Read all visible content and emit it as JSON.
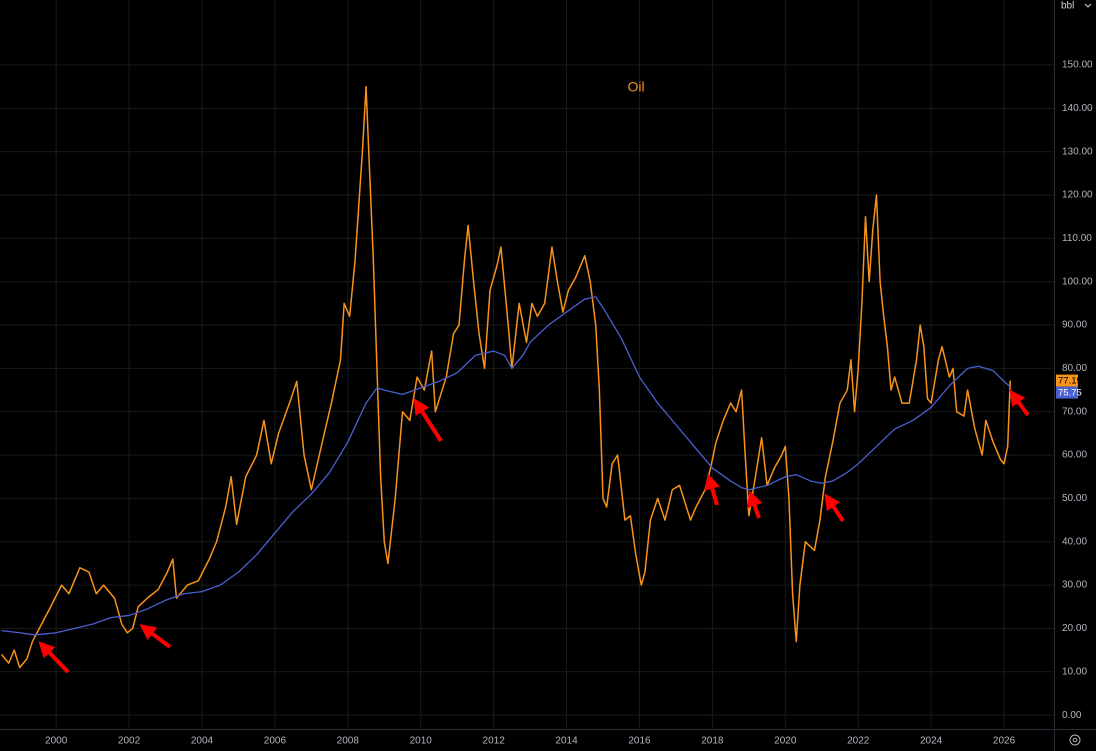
{
  "chart_data": {
    "type": "line",
    "title": "Oil",
    "unit": "bbl",
    "grid": true,
    "xlim": [
      1998.46,
      2027.37
    ],
    "xticks": [
      2000,
      2002,
      2004,
      2006,
      2008,
      2010,
      2012,
      2014,
      2016,
      2018,
      2020,
      2022,
      2024,
      2026
    ],
    "ylim": [
      -3.2,
      165
    ],
    "yticks": [
      {
        "value": 0,
        "label": "0.00"
      },
      {
        "value": 10,
        "label": "10.00"
      },
      {
        "value": 20,
        "label": "20.00"
      },
      {
        "value": 30,
        "label": "30.00"
      },
      {
        "value": 40,
        "label": "40.00"
      },
      {
        "value": 50,
        "label": "50.00"
      },
      {
        "value": 60,
        "label": "60.00"
      },
      {
        "value": 70,
        "label": "70.00"
      },
      {
        "value": 80,
        "label": "80.00"
      },
      {
        "value": 90,
        "label": "90.00"
      },
      {
        "value": 100,
        "label": "100.00"
      },
      {
        "value": 110,
        "label": "110.00"
      },
      {
        "value": 120,
        "label": "120.00"
      },
      {
        "value": 130,
        "label": "130.00"
      },
      {
        "value": 140,
        "label": "140.00"
      },
      {
        "value": 150,
        "label": "150.00"
      }
    ],
    "series": [
      {
        "color": "#f7931a",
        "x": [
          1998.5,
          1998.7,
          1998.85,
          1999.0,
          1999.2,
          1999.35,
          1999.6,
          1999.85,
          2000.15,
          2000.35,
          2000.65,
          2000.9,
          2001.1,
          2001.3,
          2001.6,
          2001.8,
          2001.95,
          2002.1,
          2002.25,
          2002.5,
          2002.8,
          2003.05,
          2003.2,
          2003.3,
          2003.6,
          2003.9,
          2004.2,
          2004.4,
          2004.65,
          2004.8,
          2004.95,
          2005.2,
          2005.5,
          2005.7,
          2005.9,
          2006.1,
          2006.4,
          2006.6,
          2006.8,
          2007.0,
          2007.3,
          2007.55,
          2007.8,
          2007.9,
          2008.05,
          2008.2,
          2008.4,
          2008.5,
          2008.6,
          2008.7,
          2008.8,
          2008.9,
          2009.0,
          2009.1,
          2009.3,
          2009.5,
          2009.7,
          2009.9,
          2010.1,
          2010.3,
          2010.4,
          2010.7,
          2010.9,
          2011.05,
          2011.2,
          2011.3,
          2011.45,
          2011.6,
          2011.75,
          2011.9,
          2012.1,
          2012.2,
          2012.4,
          2012.5,
          2012.7,
          2012.9,
          2013.05,
          2013.2,
          2013.4,
          2013.6,
          2013.75,
          2013.9,
          2014.05,
          2014.25,
          2014.5,
          2014.65,
          2014.8,
          2014.9,
          2015.0,
          2015.1,
          2015.25,
          2015.4,
          2015.6,
          2015.75,
          2015.9,
          2016.05,
          2016.15,
          2016.3,
          2016.5,
          2016.7,
          2016.9,
          2017.1,
          2017.4,
          2017.55,
          2017.8,
          2017.95,
          2018.1,
          2018.3,
          2018.5,
          2018.65,
          2018.8,
          2018.9,
          2019.0,
          2019.2,
          2019.35,
          2019.5,
          2019.7,
          2019.9,
          2020.0,
          2020.1,
          2020.2,
          2020.3,
          2020.4,
          2020.55,
          2020.8,
          2020.95,
          2021.1,
          2021.3,
          2021.5,
          2021.7,
          2021.8,
          2021.9,
          2022.0,
          2022.1,
          2022.2,
          2022.3,
          2022.4,
          2022.5,
          2022.6,
          2022.7,
          2022.8,
          2022.9,
          2023.0,
          2023.2,
          2023.4,
          2023.6,
          2023.7,
          2023.8,
          2023.9,
          2024.0,
          2024.2,
          2024.3,
          2024.5,
          2024.6,
          2024.7,
          2024.9,
          2025.0,
          2025.2,
          2025.4,
          2025.5,
          2025.7,
          2025.9,
          2026.0,
          2026.1,
          2026.17
        ],
        "values": [
          14,
          12,
          15,
          11,
          13,
          17,
          21,
          25,
          30,
          28,
          34,
          33,
          28,
          30,
          27,
          21,
          19,
          20,
          25,
          27,
          29,
          33,
          36,
          27,
          30,
          31,
          36,
          40,
          48,
          55,
          44,
          55,
          60,
          68,
          58,
          65,
          72,
          77,
          60,
          52,
          63,
          72,
          82,
          95,
          92,
          105,
          130,
          145,
          125,
          105,
          80,
          55,
          40,
          35,
          50,
          70,
          68,
          78,
          75,
          84,
          70,
          78,
          88,
          90,
          105,
          113,
          100,
          88,
          80,
          98,
          104,
          108,
          90,
          80,
          95,
          86,
          95,
          92,
          95,
          108,
          100,
          93,
          98,
          101,
          106,
          100,
          90,
          75,
          50,
          48,
          58,
          60,
          45,
          46,
          37,
          30,
          33,
          45,
          50,
          45,
          52,
          53,
          45,
          48,
          52,
          57,
          63,
          68,
          72,
          70,
          75,
          60,
          46,
          56,
          64,
          53,
          57,
          60,
          62,
          50,
          28,
          17,
          30,
          40,
          38,
          45,
          55,
          63,
          72,
          75,
          82,
          70,
          80,
          95,
          115,
          100,
          112,
          120,
          100,
          92,
          85,
          75,
          78,
          72,
          72,
          82,
          90,
          85,
          73,
          72,
          82,
          85,
          78,
          80,
          70,
          69,
          75,
          66,
          60,
          68,
          63,
          59,
          58,
          62,
          77.19
        ]
      },
      {
        "color": "#4a5fd0",
        "x": [
          1998.5,
          1999.0,
          1999.4,
          2000.0,
          2000.5,
          2001.0,
          2001.5,
          2002.0,
          2002.5,
          2003.0,
          2003.5,
          2004.0,
          2004.5,
          2005.0,
          2005.5,
          2006.0,
          2006.5,
          2007.0,
          2007.5,
          2008.0,
          2008.5,
          2008.8,
          2009.0,
          2009.5,
          2010.0,
          2010.5,
          2011.0,
          2011.5,
          2012.0,
          2012.3,
          2012.5,
          2012.8,
          2013.0,
          2013.5,
          2014.0,
          2014.5,
          2014.8,
          2015.0,
          2015.5,
          2016.0,
          2016.5,
          2017.0,
          2017.5,
          2018.0,
          2018.5,
          2018.8,
          2019.0,
          2019.5,
          2020.0,
          2020.3,
          2020.7,
          2021.0,
          2021.3,
          2021.7,
          2022.0,
          2022.5,
          2023.0,
          2023.5,
          2024.0,
          2024.5,
          2025.0,
          2025.3,
          2025.7,
          2026.0,
          2026.17
        ],
        "values": [
          19.5,
          19,
          18.5,
          19,
          20,
          21,
          22.5,
          23,
          24.5,
          26.5,
          28,
          28.5,
          30,
          33,
          37,
          42,
          47,
          51,
          56,
          63,
          72,
          75.5,
          75,
          74,
          75.5,
          77,
          79,
          83,
          84,
          83,
          80,
          83,
          86,
          90,
          93,
          96,
          96.5,
          94,
          87,
          78,
          72,
          67,
          62,
          57,
          54,
          52.5,
          52,
          53,
          55,
          55.5,
          54,
          53.5,
          54,
          56,
          58,
          62,
          66,
          68,
          71,
          76,
          80,
          80.5,
          79.5,
          77,
          75.75
        ]
      }
    ]
  }
}
